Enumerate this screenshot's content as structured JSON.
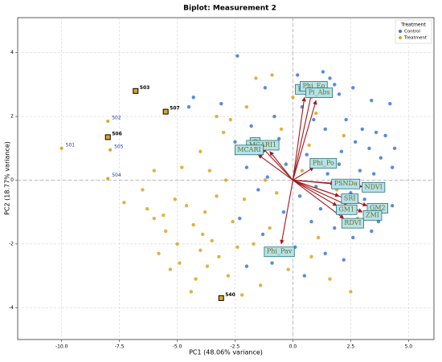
{
  "chart_data": {
    "type": "biplot",
    "title": "Biplot: Measurement 2",
    "x_label": "PC1 (48.06% variance)",
    "y_label": "PC2 (18.77% variance)",
    "xlim": [
      -11.9,
      6.1
    ],
    "ylim": [
      -5,
      5.1
    ],
    "xticks": [
      {
        "value": -10,
        "label": "-10.0"
      },
      {
        "value": -7.5,
        "label": "-7.5"
      },
      {
        "value": -5,
        "label": "-5.0"
      },
      {
        "value": -2.5,
        "label": "-2.5"
      },
      {
        "value": 0,
        "label": "0.0"
      },
      {
        "value": 2.5,
        "label": "2.5"
      },
      {
        "value": 5,
        "label": "5.0"
      }
    ],
    "yticks": [
      -4,
      -2,
      0,
      2,
      4
    ],
    "grid": true,
    "legend_title": "Treatment",
    "legend_position": "upper right",
    "series": [
      {
        "name": "Control",
        "color": "#3a78d6",
        "x": [
          -2.4,
          0.2,
          1.3,
          1.6,
          2.0,
          2.6,
          3.4,
          4.2,
          -4.3,
          -1.2,
          -3.1,
          2.3,
          3.0,
          3.6,
          4.0,
          4.4,
          2.7,
          3.3,
          1.4,
          0.9,
          -0.8,
          -1.8,
          2.1,
          3.8,
          4.3,
          2.9,
          1.5,
          0.6,
          -0.3,
          -1.1,
          -2.0,
          -1.5,
          0.3,
          1.2,
          2.5,
          3.1,
          4.0,
          1.8,
          2.6,
          3.4,
          0.8,
          -0.4,
          -1.3,
          -2.3,
          0.1,
          1.4,
          2.2,
          -0.9,
          -2.0,
          0.5,
          3.7,
          4.3,
          1.0,
          2.0,
          3.5,
          -0.6,
          0.4,
          -4.5,
          -2.5,
          1.8
        ],
        "values": [
          3.9,
          3.3,
          3.4,
          3.2,
          2.7,
          2.9,
          2.5,
          2.4,
          2.6,
          2.9,
          2.4,
          1.9,
          1.6,
          1.5,
          1.4,
          1.0,
          1.2,
          1.0,
          1.6,
          1.9,
          2.0,
          1.7,
          0.9,
          0.7,
          0.4,
          0.3,
          0.2,
          0.8,
          0.5,
          0.1,
          0.4,
          -0.3,
          -0.5,
          -0.9,
          -0.4,
          -0.6,
          -0.9,
          -1.5,
          -1.8,
          -1.6,
          -1.3,
          -1.0,
          -1.7,
          -1.2,
          -2.1,
          -2.3,
          -2.5,
          -2.6,
          -2.7,
          -3.0,
          -1.3,
          -0.8,
          -0.2,
          0.5,
          0.2,
          1.3,
          2.3,
          2.3,
          1.2,
          3.0
        ]
      },
      {
        "name": "Treatment",
        "color": "#dca326",
        "x": [
          -1.6,
          -0.9,
          -3.3,
          -3.0,
          -4.8,
          -3.6,
          -5.1,
          -4.6,
          -3.8,
          -4.3,
          -3.5,
          -5.5,
          -6.3,
          -6.0,
          -4.0,
          -3.2,
          -2.6,
          -2.1,
          -1.7,
          -2.8,
          -4.2,
          -5.3,
          -4.9,
          -2.4,
          -1.0,
          -0.2,
          -1.4,
          0.8,
          1.6,
          2.5,
          -5.0,
          -6.0,
          -2.9,
          -1.8,
          -0.5,
          0.7,
          1.3,
          1.9,
          -0.7,
          0.4,
          1.1,
          -3.7,
          -2.2,
          -5.8,
          -4.4,
          -3.3,
          -4.0,
          -2.0,
          0.0,
          1.0,
          2.2,
          2.8,
          -3.9,
          -6.5,
          -5.6,
          -7.3,
          -1.2,
          -2.7
        ],
        "values": [
          3.2,
          3.3,
          2.0,
          1.5,
          0.4,
          0.3,
          -0.6,
          -0.8,
          -1.0,
          -1.4,
          -1.9,
          -1.6,
          -0.9,
          -1.2,
          -2.2,
          -2.4,
          -1.3,
          -0.6,
          -2.0,
          -3.0,
          -3.1,
          -2.8,
          -2.6,
          -2.1,
          -1.5,
          -2.8,
          -3.3,
          -2.4,
          -3.1,
          -3.5,
          -2.0,
          0.3,
          0.0,
          0.9,
          1.6,
          1.1,
          0.6,
          -0.3,
          -0.4,
          0.3,
          -1.8,
          -2.7,
          -3.6,
          -2.3,
          -3.5,
          -0.5,
          0.9,
          2.3,
          2.6,
          2.1,
          1.4,
          -1.2,
          -1.7,
          -0.3,
          -1.1,
          -0.7,
          0.0,
          1.9
        ]
      }
    ],
    "loadings": [
      {
        "name": "Psi_o",
        "x": 0.5,
        "y": 2.6
      },
      {
        "name": "Phi_Eo",
        "x": 0.8,
        "y": 2.7
      },
      {
        "name": "Pi_Abs",
        "x": 1.0,
        "y": 2.5
      },
      {
        "name": "G",
        "x": -1.3,
        "y": 1.0
      },
      {
        "name": "MCARI1",
        "x": -1.0,
        "y": 0.9
      },
      {
        "name": "MCARI",
        "x": -1.5,
        "y": 0.8
      },
      {
        "name": "Phi_Po",
        "x": 0.9,
        "y": 0.4
      },
      {
        "name": "PSNDa",
        "x": 1.8,
        "y": -0.1
      },
      {
        "name": "NDVI",
        "x": 3.0,
        "y": -0.2
      },
      {
        "name": "SRI",
        "x": 2.0,
        "y": -0.5
      },
      {
        "name": "GM2",
        "x": 3.2,
        "y": -0.8
      },
      {
        "name": "GM1",
        "x": 1.9,
        "y": -0.8
      },
      {
        "name": "ZMI",
        "x": 3.0,
        "y": -1.0
      },
      {
        "name": "RDVI",
        "x": 2.2,
        "y": -1.2
      },
      {
        "name": "Phi_Pav",
        "x": -0.5,
        "y": -2.0
      }
    ],
    "outliers": [
      {
        "label": "503",
        "x": -6.8,
        "y": 2.8,
        "highlight": true
      },
      {
        "label": "507",
        "x": -5.5,
        "y": 2.15,
        "highlight": true
      },
      {
        "label": "506",
        "x": -8.0,
        "y": 1.35,
        "highlight": true
      },
      {
        "label": "540",
        "x": -3.1,
        "y": -3.7,
        "highlight": true
      },
      {
        "label": "502",
        "x": -8.0,
        "y": 1.85,
        "highlight": false
      },
      {
        "label": "505",
        "x": -7.9,
        "y": 0.95,
        "highlight": false
      },
      {
        "label": "501",
        "x": -10.0,
        "y": 1.0,
        "highlight": false
      },
      {
        "label": "504",
        "x": -8.0,
        "y": 0.05,
        "highlight": false
      }
    ]
  }
}
